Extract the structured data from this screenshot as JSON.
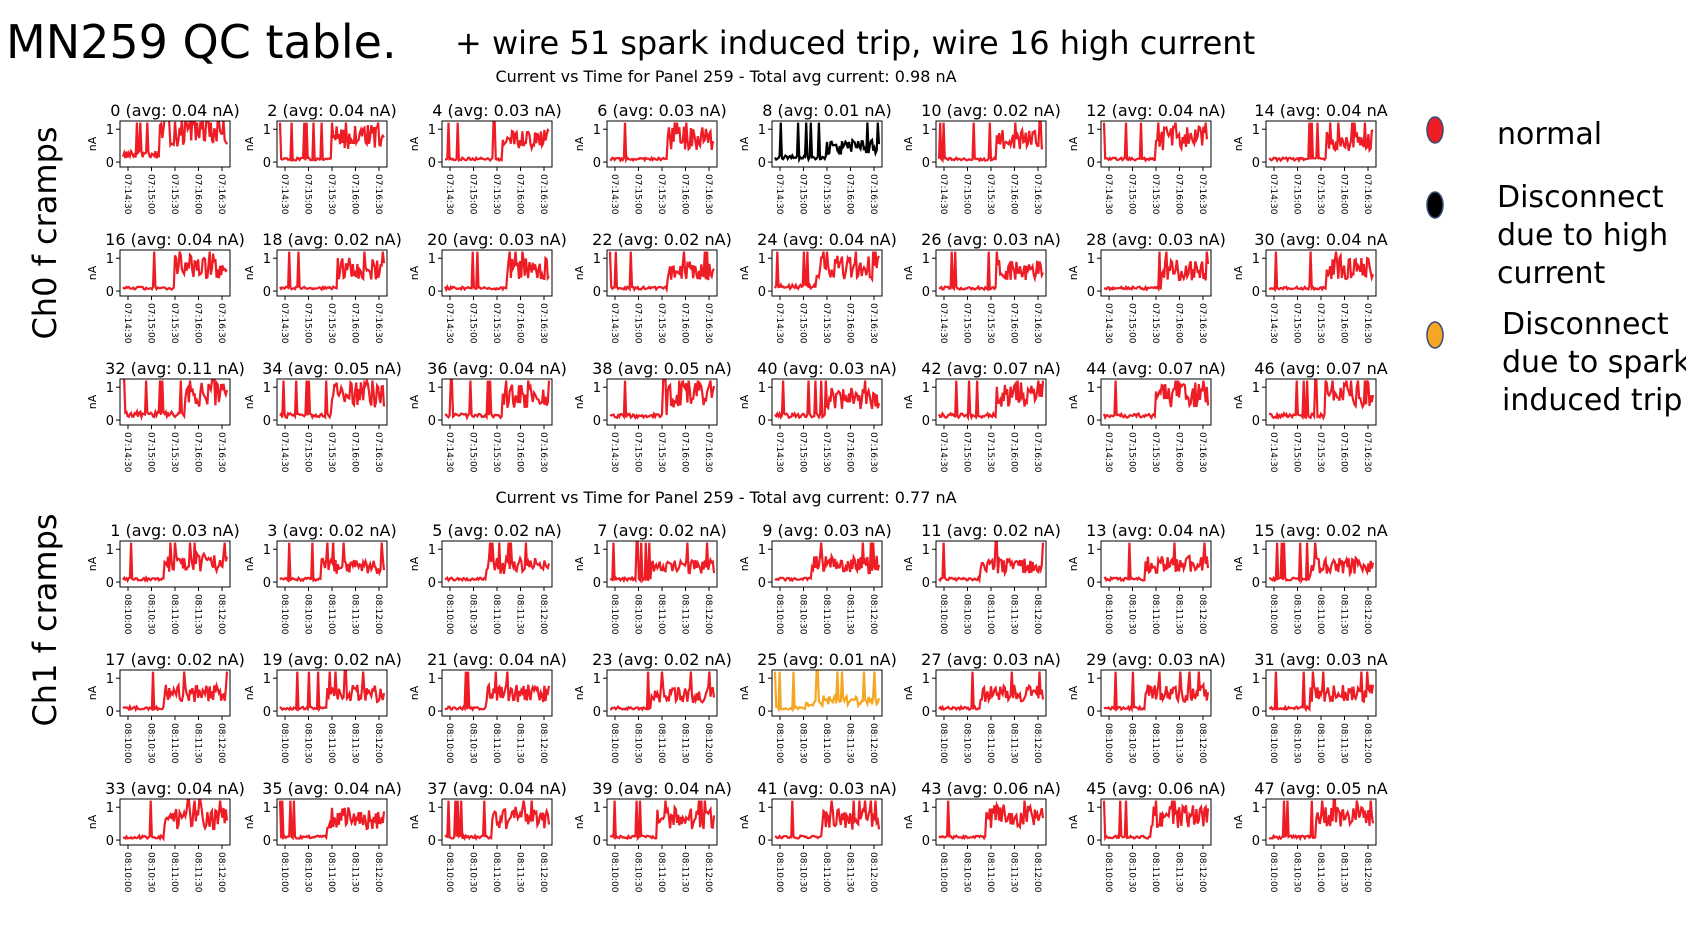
{
  "slide": {
    "title": "MN259 QC table.",
    "subtitle": "+ wire 51 spark induced trip, wire 16 high current",
    "row_labels": [
      "Ch0 f cramps",
      "Ch1 f cramps"
    ]
  },
  "legend": {
    "items": [
      {
        "color": "#ee1c25",
        "lines": [
          "normal"
        ]
      },
      {
        "color": "#000000",
        "lines": [
          "Disconnect",
          "due to high",
          "current"
        ]
      },
      {
        "color": "#f5a623",
        "lines": [
          "Disconnect",
          "due to spark",
          "induced trip"
        ]
      }
    ]
  },
  "chart_data": [
    {
      "type": "line",
      "title": "Current vs Time for Panel 259 - Total avg current: 0.98 nA",
      "ylabel": "nA",
      "ylim": [
        -0.15,
        1.25
      ],
      "yticks": [
        0,
        1
      ],
      "xticks": [
        "07:14:30",
        "07:15:00",
        "07:15:30",
        "07:16:00",
        "07:16:30"
      ],
      "panels": [
        {
          "wire": 0,
          "avg": 0.04,
          "title": "0 (avg: 0.04 nA)",
          "color": "#ee1c25",
          "low": 0.25,
          "high": 1.05,
          "step_at": 0.35
        },
        {
          "wire": 2,
          "avg": 0.04,
          "title": "2 (avg: 0.04 nA)",
          "color": "#ee1c25",
          "low": 0.1,
          "high": 0.85,
          "step_at": 0.5
        },
        {
          "wire": 4,
          "avg": 0.03,
          "title": "4 (avg: 0.03 nA)",
          "color": "#ee1c25",
          "low": 0.1,
          "high": 0.75,
          "step_at": 0.55
        },
        {
          "wire": 6,
          "avg": 0.03,
          "title": "6 (avg: 0.03 nA)",
          "color": "#ee1c25",
          "low": 0.1,
          "high": 0.8,
          "step_at": 0.55
        },
        {
          "wire": 8,
          "avg": 0.01,
          "title": "8 (avg: 0.01 nA)",
          "color": "#000000",
          "low": 0.15,
          "high": 0.5,
          "step_at": 0.5
        },
        {
          "wire": 10,
          "avg": 0.02,
          "title": "10 (avg: 0.02 nA)",
          "color": "#ee1c25",
          "low": 0.1,
          "high": 0.75,
          "step_at": 0.55
        },
        {
          "wire": 12,
          "avg": 0.04,
          "title": "12 (avg: 0.04 nA)",
          "color": "#ee1c25",
          "low": 0.1,
          "high": 0.8,
          "step_at": 0.5
        },
        {
          "wire": 14,
          "avg": 0.04,
          "title": "14 (avg: 0.04 nA",
          "color": "#ee1c25",
          "low": 0.1,
          "high": 0.75,
          "step_at": 0.55
        },
        {
          "wire": 16,
          "avg": 0.04,
          "title": "16 (avg: 0.04 nA)",
          "color": "#ee1c25",
          "low": 0.1,
          "high": 0.85,
          "step_at": 0.5
        },
        {
          "wire": 18,
          "avg": 0.02,
          "title": "18 (avg: 0.02 nA)",
          "color": "#ee1c25",
          "low": 0.1,
          "high": 0.75,
          "step_at": 0.55
        },
        {
          "wire": 20,
          "avg": 0.03,
          "title": "20 (avg: 0.03 nA)",
          "color": "#ee1c25",
          "low": 0.1,
          "high": 0.75,
          "step_at": 0.6
        },
        {
          "wire": 22,
          "avg": 0.02,
          "title": "22 (avg: 0.02 nA)",
          "color": "#ee1c25",
          "low": 0.1,
          "high": 0.7,
          "step_at": 0.55
        },
        {
          "wire": 24,
          "avg": 0.04,
          "title": "24 (avg: 0.04 nA)",
          "color": "#ee1c25",
          "low": 0.15,
          "high": 0.8,
          "step_at": 0.4
        },
        {
          "wire": 26,
          "avg": 0.03,
          "title": "26 (avg: 0.03 nA)",
          "color": "#ee1c25",
          "low": 0.1,
          "high": 0.7,
          "step_at": 0.55
        },
        {
          "wire": 28,
          "avg": 0.03,
          "title": "28 (avg: 0.03 nA)",
          "color": "#ee1c25",
          "low": 0.1,
          "high": 0.7,
          "step_at": 0.55
        },
        {
          "wire": 30,
          "avg": 0.04,
          "title": "30 (avg: 0.04 nA",
          "color": "#ee1c25",
          "low": 0.1,
          "high": 0.8,
          "step_at": 0.55
        },
        {
          "wire": 32,
          "avg": 0.11,
          "title": "32 (avg: 0.11 nA)",
          "color": "#ee1c25",
          "low": 0.2,
          "high": 0.9,
          "step_at": 0.6
        },
        {
          "wire": 34,
          "avg": 0.05,
          "title": "34 (avg: 0.05 nA)",
          "color": "#ee1c25",
          "low": 0.15,
          "high": 0.85,
          "step_at": 0.5
        },
        {
          "wire": 36,
          "avg": 0.04,
          "title": "36 (avg: 0.04 nA)",
          "color": "#ee1c25",
          "low": 0.15,
          "high": 0.8,
          "step_at": 0.55
        },
        {
          "wire": 38,
          "avg": 0.05,
          "title": "38 (avg: 0.05 nA)",
          "color": "#ee1c25",
          "low": 0.15,
          "high": 0.85,
          "step_at": 0.55
        },
        {
          "wire": 40,
          "avg": 0.03,
          "title": "40 (avg: 0.03 nA)",
          "color": "#ee1c25",
          "low": 0.15,
          "high": 0.75,
          "step_at": 0.5
        },
        {
          "wire": 42,
          "avg": 0.07,
          "title": "42 (avg: 0.07 nA)",
          "color": "#ee1c25",
          "low": 0.15,
          "high": 0.85,
          "step_at": 0.55
        },
        {
          "wire": 44,
          "avg": 0.07,
          "title": "44 (avg: 0.07 nA)",
          "color": "#ee1c25",
          "low": 0.15,
          "high": 0.85,
          "step_at": 0.5
        },
        {
          "wire": 46,
          "avg": 0.07,
          "title": "46 (avg: 0.07 nA",
          "color": "#ee1c25",
          "low": 0.15,
          "high": 0.85,
          "step_at": 0.55
        }
      ]
    },
    {
      "type": "line",
      "title": "Current vs Time for Panel 259 - Total avg current: 0.77 nA",
      "ylabel": "nA",
      "ylim": [
        -0.15,
        1.25
      ],
      "yticks": [
        0,
        1
      ],
      "xticks": [
        "08:10:00",
        "08:10:30",
        "08:11:00",
        "08:11:30",
        "08:12:00"
      ],
      "panels": [
        {
          "wire": 1,
          "avg": 0.03,
          "title": "1 (avg: 0.03 nA)",
          "color": "#ee1c25",
          "low": 0.1,
          "high": 0.65,
          "step_at": 0.4
        },
        {
          "wire": 3,
          "avg": 0.02,
          "title": "3 (avg: 0.02 nA)",
          "color": "#ee1c25",
          "low": 0.1,
          "high": 0.55,
          "step_at": 0.4
        },
        {
          "wire": 5,
          "avg": 0.02,
          "title": "5 (avg: 0.02 nA)",
          "color": "#ee1c25",
          "low": 0.1,
          "high": 0.55,
          "step_at": 0.4
        },
        {
          "wire": 7,
          "avg": 0.02,
          "title": "7 (avg: 0.02 nA)",
          "color": "#ee1c25",
          "low": 0.1,
          "high": 0.55,
          "step_at": 0.4
        },
        {
          "wire": 9,
          "avg": 0.03,
          "title": "9 (avg: 0.03 nA)",
          "color": "#ee1c25",
          "low": 0.1,
          "high": 0.6,
          "step_at": 0.35
        },
        {
          "wire": 11,
          "avg": 0.02,
          "title": "11 (avg: 0.02 nA)",
          "color": "#ee1c25",
          "low": 0.1,
          "high": 0.55,
          "step_at": 0.4
        },
        {
          "wire": 13,
          "avg": 0.04,
          "title": "13 (avg: 0.04 nA)",
          "color": "#ee1c25",
          "low": 0.1,
          "high": 0.6,
          "step_at": 0.4
        },
        {
          "wire": 15,
          "avg": 0.02,
          "title": "15 (avg: 0.02 nA",
          "color": "#ee1c25",
          "low": 0.1,
          "high": 0.55,
          "step_at": 0.4
        },
        {
          "wire": 17,
          "avg": 0.02,
          "title": "17 (avg: 0.02 nA)",
          "color": "#ee1c25",
          "low": 0.1,
          "high": 0.6,
          "step_at": 0.4
        },
        {
          "wire": 19,
          "avg": 0.02,
          "title": "19 (avg: 0.02 nA)",
          "color": "#ee1c25",
          "low": 0.1,
          "high": 0.6,
          "step_at": 0.45
        },
        {
          "wire": 21,
          "avg": 0.04,
          "title": "21 (avg: 0.04 nA)",
          "color": "#ee1c25",
          "low": 0.1,
          "high": 0.6,
          "step_at": 0.4
        },
        {
          "wire": 23,
          "avg": 0.02,
          "title": "23 (avg: 0.02 nA)",
          "color": "#ee1c25",
          "low": 0.1,
          "high": 0.55,
          "step_at": 0.4
        },
        {
          "wire": 25,
          "avg": 0.01,
          "title": "25 (avg: 0.01 nA)",
          "color": "#f5a623",
          "low": 0.1,
          "high": 0.35,
          "step_at": 0.3
        },
        {
          "wire": 27,
          "avg": 0.03,
          "title": "27 (avg: 0.03 nA)",
          "color": "#ee1c25",
          "low": 0.1,
          "high": 0.6,
          "step_at": 0.4
        },
        {
          "wire": 29,
          "avg": 0.03,
          "title": "29 (avg: 0.03 nA)",
          "color": "#ee1c25",
          "low": 0.1,
          "high": 0.6,
          "step_at": 0.4
        },
        {
          "wire": 31,
          "avg": 0.03,
          "title": "31 (avg: 0.03 nA",
          "color": "#ee1c25",
          "low": 0.1,
          "high": 0.6,
          "step_at": 0.4
        },
        {
          "wire": 33,
          "avg": 0.04,
          "title": "33 (avg: 0.04 nA)",
          "color": "#ee1c25",
          "low": 0.1,
          "high": 0.75,
          "step_at": 0.4
        },
        {
          "wire": 35,
          "avg": 0.04,
          "title": "35 (avg: 0.04 nA)",
          "color": "#ee1c25",
          "low": 0.1,
          "high": 0.75,
          "step_at": 0.45
        },
        {
          "wire": 37,
          "avg": 0.04,
          "title": "37 (avg: 0.04 nA)",
          "color": "#ee1c25",
          "low": 0.1,
          "high": 0.75,
          "step_at": 0.45
        },
        {
          "wire": 39,
          "avg": 0.04,
          "title": "39 (avg: 0.04 nA)",
          "color": "#ee1c25",
          "low": 0.1,
          "high": 0.75,
          "step_at": 0.45
        },
        {
          "wire": 41,
          "avg": 0.03,
          "title": "41 (avg: 0.03 nA)",
          "color": "#ee1c25",
          "low": 0.1,
          "high": 0.7,
          "step_at": 0.45
        },
        {
          "wire": 43,
          "avg": 0.06,
          "title": "43 (avg: 0.06 nA)",
          "color": "#ee1c25",
          "low": 0.1,
          "high": 0.8,
          "step_at": 0.45
        },
        {
          "wire": 45,
          "avg": 0.06,
          "title": "45 (avg: 0.06 nA)",
          "color": "#ee1c25",
          "low": 0.1,
          "high": 0.8,
          "step_at": 0.45
        },
        {
          "wire": 47,
          "avg": 0.05,
          "title": "47 (avg: 0.05 nA",
          "color": "#ee1c25",
          "low": 0.1,
          "high": 0.75,
          "step_at": 0.45
        }
      ]
    }
  ]
}
